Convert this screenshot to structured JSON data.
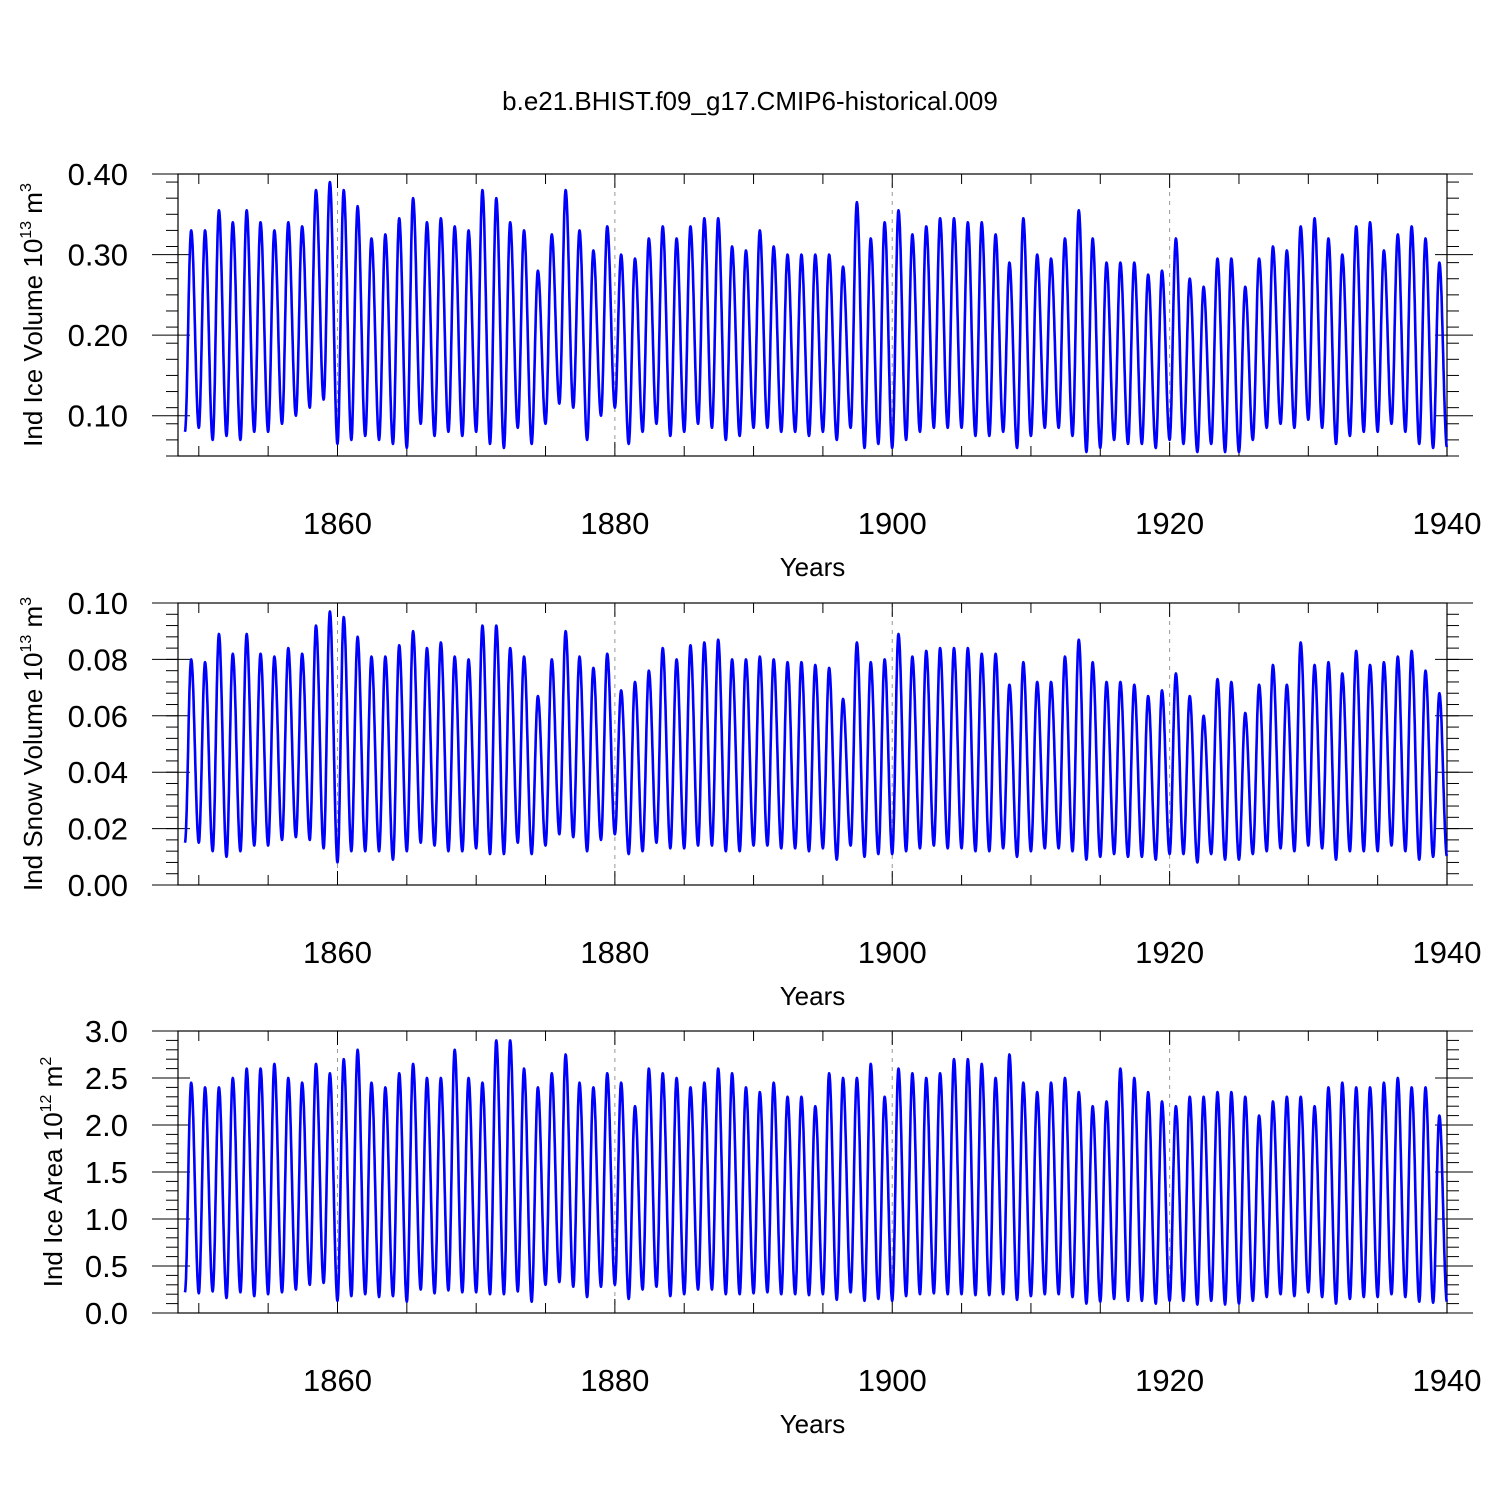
{
  "figure_title": "b.e21.BHIST.f09_g17.CMIP6-historical.009",
  "colors": {
    "series": "#0000ff",
    "axis": "#000000",
    "grid": "#999999"
  },
  "chart_data": [
    {
      "type": "line",
      "title": "",
      "xlabel": "Years",
      "ylabel": {
        "text": "Ind Ice Volume 10",
        "exponent": "13",
        "unit": " m",
        "unit_exponent": "3"
      },
      "xlim": [
        1848.5,
        1940
      ],
      "xticks": [
        1860,
        1880,
        1900,
        1920,
        1940
      ],
      "xtick_labels": [
        "1860",
        "1880",
        "1900",
        "1920",
        "1940"
      ],
      "ylim": [
        0.05,
        0.4
      ],
      "yticks": [
        0.1,
        0.2,
        0.3,
        0.4
      ],
      "ytick_labels": [
        "0.10",
        "0.20",
        "0.30",
        "0.40"
      ],
      "series": [
        {
          "name": "Ind Ice Volume",
          "x_start": 1849.0,
          "x_step": 1.0,
          "seasonal_min_fraction": 0.1,
          "annual_max": [
            0.33,
            0.33,
            0.355,
            0.34,
            0.355,
            0.34,
            0.33,
            0.34,
            0.335,
            0.38,
            0.39,
            0.38,
            0.36,
            0.32,
            0.325,
            0.345,
            0.37,
            0.34,
            0.345,
            0.335,
            0.33,
            0.38,
            0.37,
            0.34,
            0.33,
            0.28,
            0.325,
            0.38,
            0.33,
            0.305,
            0.335,
            0.3,
            0.295,
            0.32,
            0.335,
            0.32,
            0.335,
            0.345,
            0.345,
            0.31,
            0.305,
            0.33,
            0.31,
            0.3,
            0.3,
            0.3,
            0.3,
            0.285,
            0.365,
            0.32,
            0.34,
            0.355,
            0.325,
            0.335,
            0.345,
            0.345,
            0.34,
            0.34,
            0.325,
            0.29,
            0.345,
            0.3,
            0.295,
            0.32,
            0.355,
            0.32,
            0.29,
            0.29,
            0.29,
            0.275,
            0.28,
            0.32,
            0.27,
            0.26,
            0.295,
            0.295,
            0.26,
            0.295,
            0.31,
            0.305,
            0.335,
            0.345,
            0.32,
            0.3,
            0.335,
            0.34,
            0.305,
            0.325,
            0.335,
            0.32,
            0.29
          ],
          "annual_min": [
            0.08,
            0.085,
            0.07,
            0.075,
            0.07,
            0.08,
            0.08,
            0.09,
            0.1,
            0.11,
            0.12,
            0.065,
            0.07,
            0.075,
            0.07,
            0.065,
            0.06,
            0.09,
            0.075,
            0.08,
            0.075,
            0.08,
            0.065,
            0.06,
            0.085,
            0.065,
            0.09,
            0.115,
            0.11,
            0.07,
            0.1,
            0.11,
            0.065,
            0.08,
            0.09,
            0.075,
            0.08,
            0.09,
            0.085,
            0.07,
            0.075,
            0.085,
            0.085,
            0.08,
            0.08,
            0.075,
            0.08,
            0.07,
            0.085,
            0.06,
            0.065,
            0.06,
            0.07,
            0.08,
            0.085,
            0.085,
            0.085,
            0.075,
            0.075,
            0.08,
            0.06,
            0.075,
            0.085,
            0.085,
            0.075,
            0.055,
            0.06,
            0.07,
            0.065,
            0.065,
            0.06,
            0.07,
            0.065,
            0.055,
            0.065,
            0.055,
            0.055,
            0.07,
            0.085,
            0.09,
            0.085,
            0.095,
            0.085,
            0.065,
            0.075,
            0.08,
            0.08,
            0.09,
            0.08,
            0.065,
            0.06
          ]
        }
      ]
    },
    {
      "type": "line",
      "title": "",
      "xlabel": "Years",
      "ylabel": {
        "text": "Ind Snow Volume 10",
        "exponent": "13",
        "unit": " m",
        "unit_exponent": "3"
      },
      "xlim": [
        1848.5,
        1940
      ],
      "xticks": [
        1860,
        1880,
        1900,
        1920,
        1940
      ],
      "xtick_labels": [
        "1860",
        "1880",
        "1900",
        "1920",
        "1940"
      ],
      "ylim": [
        0.0,
        0.1
      ],
      "yticks": [
        0.0,
        0.02,
        0.04,
        0.06,
        0.08,
        0.1
      ],
      "ytick_labels": [
        "0.00",
        "0.02",
        "0.04",
        "0.06",
        "0.08",
        "0.10"
      ],
      "series": [
        {
          "name": "Ind Snow Volume",
          "x_start": 1849.0,
          "x_step": 1.0,
          "seasonal_min_fraction": 0.1,
          "annual_max": [
            0.08,
            0.079,
            0.089,
            0.082,
            0.089,
            0.082,
            0.081,
            0.084,
            0.082,
            0.092,
            0.097,
            0.095,
            0.088,
            0.081,
            0.081,
            0.085,
            0.09,
            0.084,
            0.086,
            0.081,
            0.08,
            0.092,
            0.092,
            0.084,
            0.081,
            0.067,
            0.08,
            0.09,
            0.081,
            0.077,
            0.082,
            0.069,
            0.072,
            0.076,
            0.084,
            0.08,
            0.085,
            0.086,
            0.087,
            0.08,
            0.08,
            0.081,
            0.08,
            0.079,
            0.079,
            0.078,
            0.077,
            0.066,
            0.086,
            0.079,
            0.08,
            0.089,
            0.081,
            0.083,
            0.084,
            0.084,
            0.084,
            0.082,
            0.082,
            0.071,
            0.079,
            0.072,
            0.072,
            0.081,
            0.087,
            0.079,
            0.072,
            0.072,
            0.071,
            0.067,
            0.069,
            0.075,
            0.067,
            0.06,
            0.073,
            0.072,
            0.061,
            0.071,
            0.078,
            0.071,
            0.086,
            0.078,
            0.079,
            0.075,
            0.083,
            0.078,
            0.079,
            0.081,
            0.083,
            0.076,
            0.068
          ],
          "annual_min": [
            0.015,
            0.015,
            0.012,
            0.01,
            0.012,
            0.014,
            0.014,
            0.016,
            0.017,
            0.016,
            0.013,
            0.008,
            0.012,
            0.012,
            0.012,
            0.009,
            0.012,
            0.015,
            0.014,
            0.012,
            0.012,
            0.013,
            0.011,
            0.011,
            0.015,
            0.011,
            0.014,
            0.018,
            0.017,
            0.012,
            0.016,
            0.018,
            0.011,
            0.012,
            0.015,
            0.013,
            0.013,
            0.014,
            0.014,
            0.012,
            0.012,
            0.014,
            0.014,
            0.013,
            0.013,
            0.012,
            0.013,
            0.009,
            0.014,
            0.01,
            0.011,
            0.011,
            0.012,
            0.013,
            0.014,
            0.013,
            0.013,
            0.012,
            0.012,
            0.013,
            0.01,
            0.012,
            0.013,
            0.013,
            0.012,
            0.009,
            0.01,
            0.011,
            0.01,
            0.01,
            0.009,
            0.011,
            0.011,
            0.008,
            0.011,
            0.009,
            0.009,
            0.011,
            0.012,
            0.013,
            0.012,
            0.014,
            0.013,
            0.009,
            0.012,
            0.012,
            0.012,
            0.014,
            0.012,
            0.009,
            0.01
          ]
        }
      ]
    },
    {
      "type": "line",
      "title": "",
      "xlabel": "Years",
      "ylabel": {
        "text": "Ind Ice Area 10",
        "exponent": "12",
        "unit": " m",
        "unit_exponent": "2"
      },
      "xlim": [
        1848.5,
        1940
      ],
      "xticks": [
        1860,
        1880,
        1900,
        1920,
        1940
      ],
      "xtick_labels": [
        "1860",
        "1880",
        "1900",
        "1920",
        "1940"
      ],
      "ylim": [
        0.0,
        3.0
      ],
      "yticks": [
        0.0,
        0.5,
        1.0,
        1.5,
        2.0,
        2.5,
        3.0
      ],
      "ytick_labels": [
        "0.0",
        "0.5",
        "1.0",
        "1.5",
        "2.0",
        "2.5",
        "3.0"
      ],
      "series": [
        {
          "name": "Ind Ice Area",
          "x_start": 1849.0,
          "x_step": 1.0,
          "seasonal_min_fraction": 0.1,
          "annual_max": [
            2.45,
            2.4,
            2.4,
            2.5,
            2.6,
            2.6,
            2.65,
            2.5,
            2.45,
            2.65,
            2.55,
            2.7,
            2.8,
            2.45,
            2.4,
            2.55,
            2.65,
            2.5,
            2.5,
            2.8,
            2.5,
            2.45,
            2.9,
            2.9,
            2.6,
            2.4,
            2.55,
            2.75,
            2.45,
            2.4,
            2.55,
            2.45,
            2.2,
            2.6,
            2.55,
            2.5,
            2.4,
            2.45,
            2.6,
            2.55,
            2.4,
            2.35,
            2.45,
            2.3,
            2.3,
            2.2,
            2.55,
            2.5,
            2.5,
            2.65,
            2.3,
            2.6,
            2.55,
            2.5,
            2.55,
            2.7,
            2.7,
            2.65,
            2.5,
            2.75,
            2.45,
            2.35,
            2.45,
            2.5,
            2.35,
            2.2,
            2.25,
            2.6,
            2.5,
            2.35,
            2.25,
            2.2,
            2.3,
            2.3,
            2.35,
            2.35,
            2.3,
            2.1,
            2.25,
            2.3,
            2.3,
            2.2,
            2.4,
            2.45,
            2.4,
            2.4,
            2.45,
            2.5,
            2.4,
            2.4,
            2.1
          ],
          "annual_min": [
            0.22,
            0.21,
            0.23,
            0.16,
            0.22,
            0.18,
            0.2,
            0.22,
            0.25,
            0.3,
            0.32,
            0.13,
            0.18,
            0.2,
            0.17,
            0.18,
            0.12,
            0.25,
            0.21,
            0.24,
            0.22,
            0.22,
            0.2,
            0.2,
            0.23,
            0.12,
            0.3,
            0.33,
            0.28,
            0.17,
            0.28,
            0.3,
            0.15,
            0.25,
            0.28,
            0.18,
            0.2,
            0.25,
            0.25,
            0.2,
            0.2,
            0.21,
            0.22,
            0.2,
            0.2,
            0.19,
            0.2,
            0.14,
            0.22,
            0.13,
            0.15,
            0.13,
            0.18,
            0.2,
            0.21,
            0.2,
            0.2,
            0.19,
            0.19,
            0.2,
            0.14,
            0.18,
            0.2,
            0.2,
            0.17,
            0.1,
            0.12,
            0.15,
            0.13,
            0.13,
            0.1,
            0.13,
            0.13,
            0.09,
            0.13,
            0.09,
            0.1,
            0.13,
            0.17,
            0.2,
            0.18,
            0.22,
            0.17,
            0.1,
            0.15,
            0.17,
            0.17,
            0.2,
            0.17,
            0.12,
            0.11
          ]
        }
      ]
    }
  ]
}
